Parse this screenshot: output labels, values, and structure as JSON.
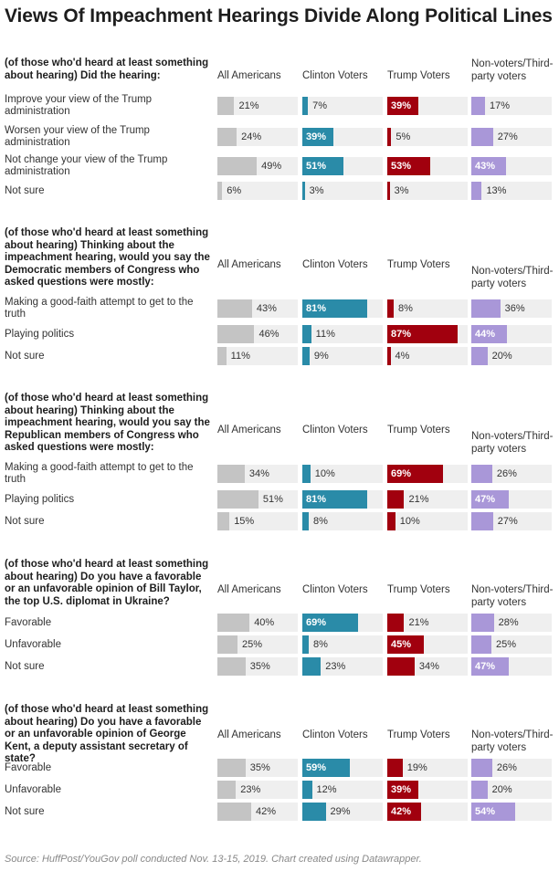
{
  "title": "Views Of Impeachment Hearings Divide Along Political Lines",
  "source": "Source: HuffPost/YouGov poll conducted Nov. 13-15, 2019. Chart created using Datawrapper.",
  "colors": {
    "All Americans": "#c4c4c4",
    "Clinton Voters": "#2a8ba8",
    "Trump Voters": "#a1000e",
    "Non-voters/Third-party voters": "#a997d8",
    "track": "#efefef"
  },
  "chart_data": {
    "type": "bar",
    "columns": [
      "All Americans",
      "Clinton Voters",
      "Trump Voters",
      "Non-voters/Third-party voters"
    ],
    "column_headers": [
      "All Americans",
      "Clinton Voters",
      "Trump Voters",
      "Non-voters/Third-party voters"
    ],
    "value_suffix": "%",
    "xlim": [
      0,
      100
    ],
    "groups": [
      {
        "question": "(of those who'd heard at least something about hearing) Did the hearing:",
        "rows": [
          {
            "label": "Improve your view of the Trump administration",
            "values": [
              21,
              7,
              39,
              17
            ]
          },
          {
            "label": "Worsen your view of the Trump administration",
            "values": [
              24,
              39,
              5,
              27
            ]
          },
          {
            "label": "Not change your view of the Trump administration",
            "values": [
              49,
              51,
              53,
              43
            ]
          },
          {
            "label": "Not sure",
            "values": [
              6,
              3,
              3,
              13
            ]
          }
        ]
      },
      {
        "question": "(of those who'd heard at least something about hearing) Thinking about the impeachment hearing, would you say the Democratic members of Congress who asked questions were mostly:",
        "rows": [
          {
            "label": "Making a good-faith attempt to get to the truth",
            "values": [
              43,
              81,
              8,
              36
            ]
          },
          {
            "label": "Playing politics",
            "values": [
              46,
              11,
              87,
              44
            ]
          },
          {
            "label": "Not sure",
            "values": [
              11,
              9,
              4,
              20
            ]
          }
        ]
      },
      {
        "question": "(of those who'd heard at least something about hearing) Thinking about the impeachment hearing, would you say the Republican members of Congress who asked questions were mostly:",
        "rows": [
          {
            "label": "Making a good-faith attempt to get to the truth",
            "values": [
              34,
              10,
              69,
              26
            ]
          },
          {
            "label": "Playing politics",
            "values": [
              51,
              81,
              21,
              47
            ]
          },
          {
            "label": "Not sure",
            "values": [
              15,
              8,
              10,
              27
            ]
          }
        ]
      },
      {
        "question": "(of those who'd heard at least something about hearing) Do you have a favorable or an unfavorable opinion of Bill Taylor, the top U.S. diplomat in Ukraine?",
        "rows": [
          {
            "label": "Favorable",
            "values": [
              40,
              69,
              21,
              28
            ]
          },
          {
            "label": "Unfavorable",
            "values": [
              25,
              8,
              45,
              25
            ]
          },
          {
            "label": "Not sure",
            "values": [
              35,
              23,
              34,
              47
            ]
          }
        ]
      },
      {
        "question": "(of those who'd heard at least something about hearing) Do you have a favorable or an unfavorable opinion of George Kent, a deputy assistant secretary of state?",
        "rows": [
          {
            "label": "Favorable",
            "values": [
              35,
              59,
              19,
              26
            ]
          },
          {
            "label": "Unfavorable",
            "values": [
              23,
              12,
              39,
              20
            ]
          },
          {
            "label": "Not sure",
            "values": [
              42,
              29,
              42,
              54
            ]
          }
        ]
      }
    ]
  }
}
